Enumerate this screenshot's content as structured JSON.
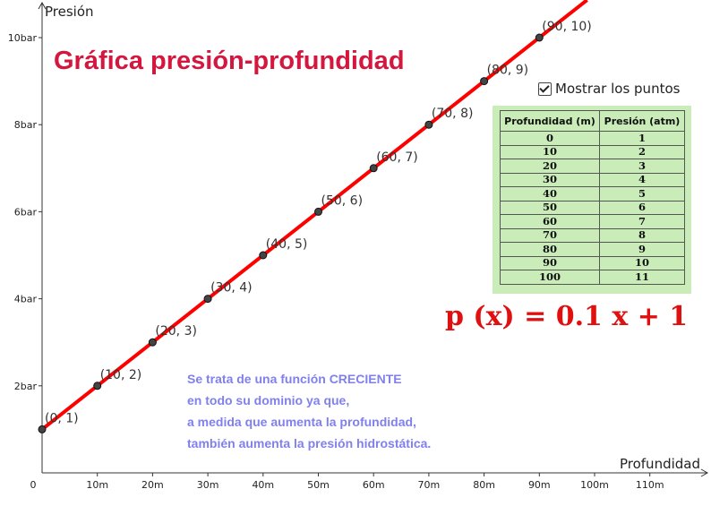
{
  "page_title": "Gráfica presión-profundidad",
  "checkbox": {
    "label": "Mostrar los puntos",
    "checked": true
  },
  "table": {
    "headers": [
      "Profundidad (m)",
      "Presión (atm)"
    ],
    "rows": [
      [
        "0",
        "1"
      ],
      [
        "10",
        "2"
      ],
      [
        "20",
        "3"
      ],
      [
        "30",
        "4"
      ],
      [
        "40",
        "5"
      ],
      [
        "50",
        "6"
      ],
      [
        "60",
        "7"
      ],
      [
        "70",
        "8"
      ],
      [
        "80",
        "9"
      ],
      [
        "90",
        "10"
      ],
      [
        "100",
        "11"
      ]
    ]
  },
  "formula": "p (x) = 0.1 x + 1",
  "note_lines": [
    "Se trata de una función CRECIENTE",
    "en todo su dominio ya que,",
    "a medida que aumenta la profundidad,",
    "también aumenta la presión hidrostática."
  ],
  "chart_data": {
    "type": "line",
    "xlabel": "Profundidad",
    "ylabel": "Presión",
    "xlim": [
      0,
      120
    ],
    "ylim": [
      0,
      10.5
    ],
    "x_ticks": [
      {
        "value": 10,
        "label": "10m"
      },
      {
        "value": 20,
        "label": "20m"
      },
      {
        "value": 30,
        "label": "30m"
      },
      {
        "value": 40,
        "label": "40m"
      },
      {
        "value": 50,
        "label": "50m"
      },
      {
        "value": 60,
        "label": "60m"
      },
      {
        "value": 70,
        "label": "70m"
      },
      {
        "value": 80,
        "label": "80m"
      },
      {
        "value": 90,
        "label": "90m"
      },
      {
        "value": 100,
        "label": "100m"
      },
      {
        "value": 110,
        "label": "110m"
      }
    ],
    "origin_label": "0",
    "y_ticks": [
      {
        "value": 2,
        "label": "2bar"
      },
      {
        "value": 4,
        "label": "4bar"
      },
      {
        "value": 6,
        "label": "6bar"
      },
      {
        "value": 8,
        "label": "8bar"
      },
      {
        "value": 10,
        "label": "10bar"
      }
    ],
    "line": {
      "slope": 0.1,
      "intercept": 1,
      "color": "#ff0000"
    },
    "points": [
      {
        "x": 0,
        "y": 1,
        "label": "(0, 1)"
      },
      {
        "x": 10,
        "y": 2,
        "label": "(10, 2)"
      },
      {
        "x": 20,
        "y": 3,
        "label": "(20, 3)"
      },
      {
        "x": 30,
        "y": 4,
        "label": "(30, 4)"
      },
      {
        "x": 40,
        "y": 5,
        "label": "(40, 5)"
      },
      {
        "x": 50,
        "y": 6,
        "label": "(50, 6)"
      },
      {
        "x": 60,
        "y": 7,
        "label": "(60, 7)"
      },
      {
        "x": 70,
        "y": 8,
        "label": "(70, 8)"
      },
      {
        "x": 80,
        "y": 9,
        "label": "(80, 9)"
      },
      {
        "x": 90,
        "y": 10,
        "label": "(90, 10)"
      }
    ],
    "colors": {
      "title": "#d4173f",
      "line": "#ff0000",
      "point": "#444444",
      "table_bg": "#c9ecb9",
      "note": "#8080ee"
    }
  }
}
